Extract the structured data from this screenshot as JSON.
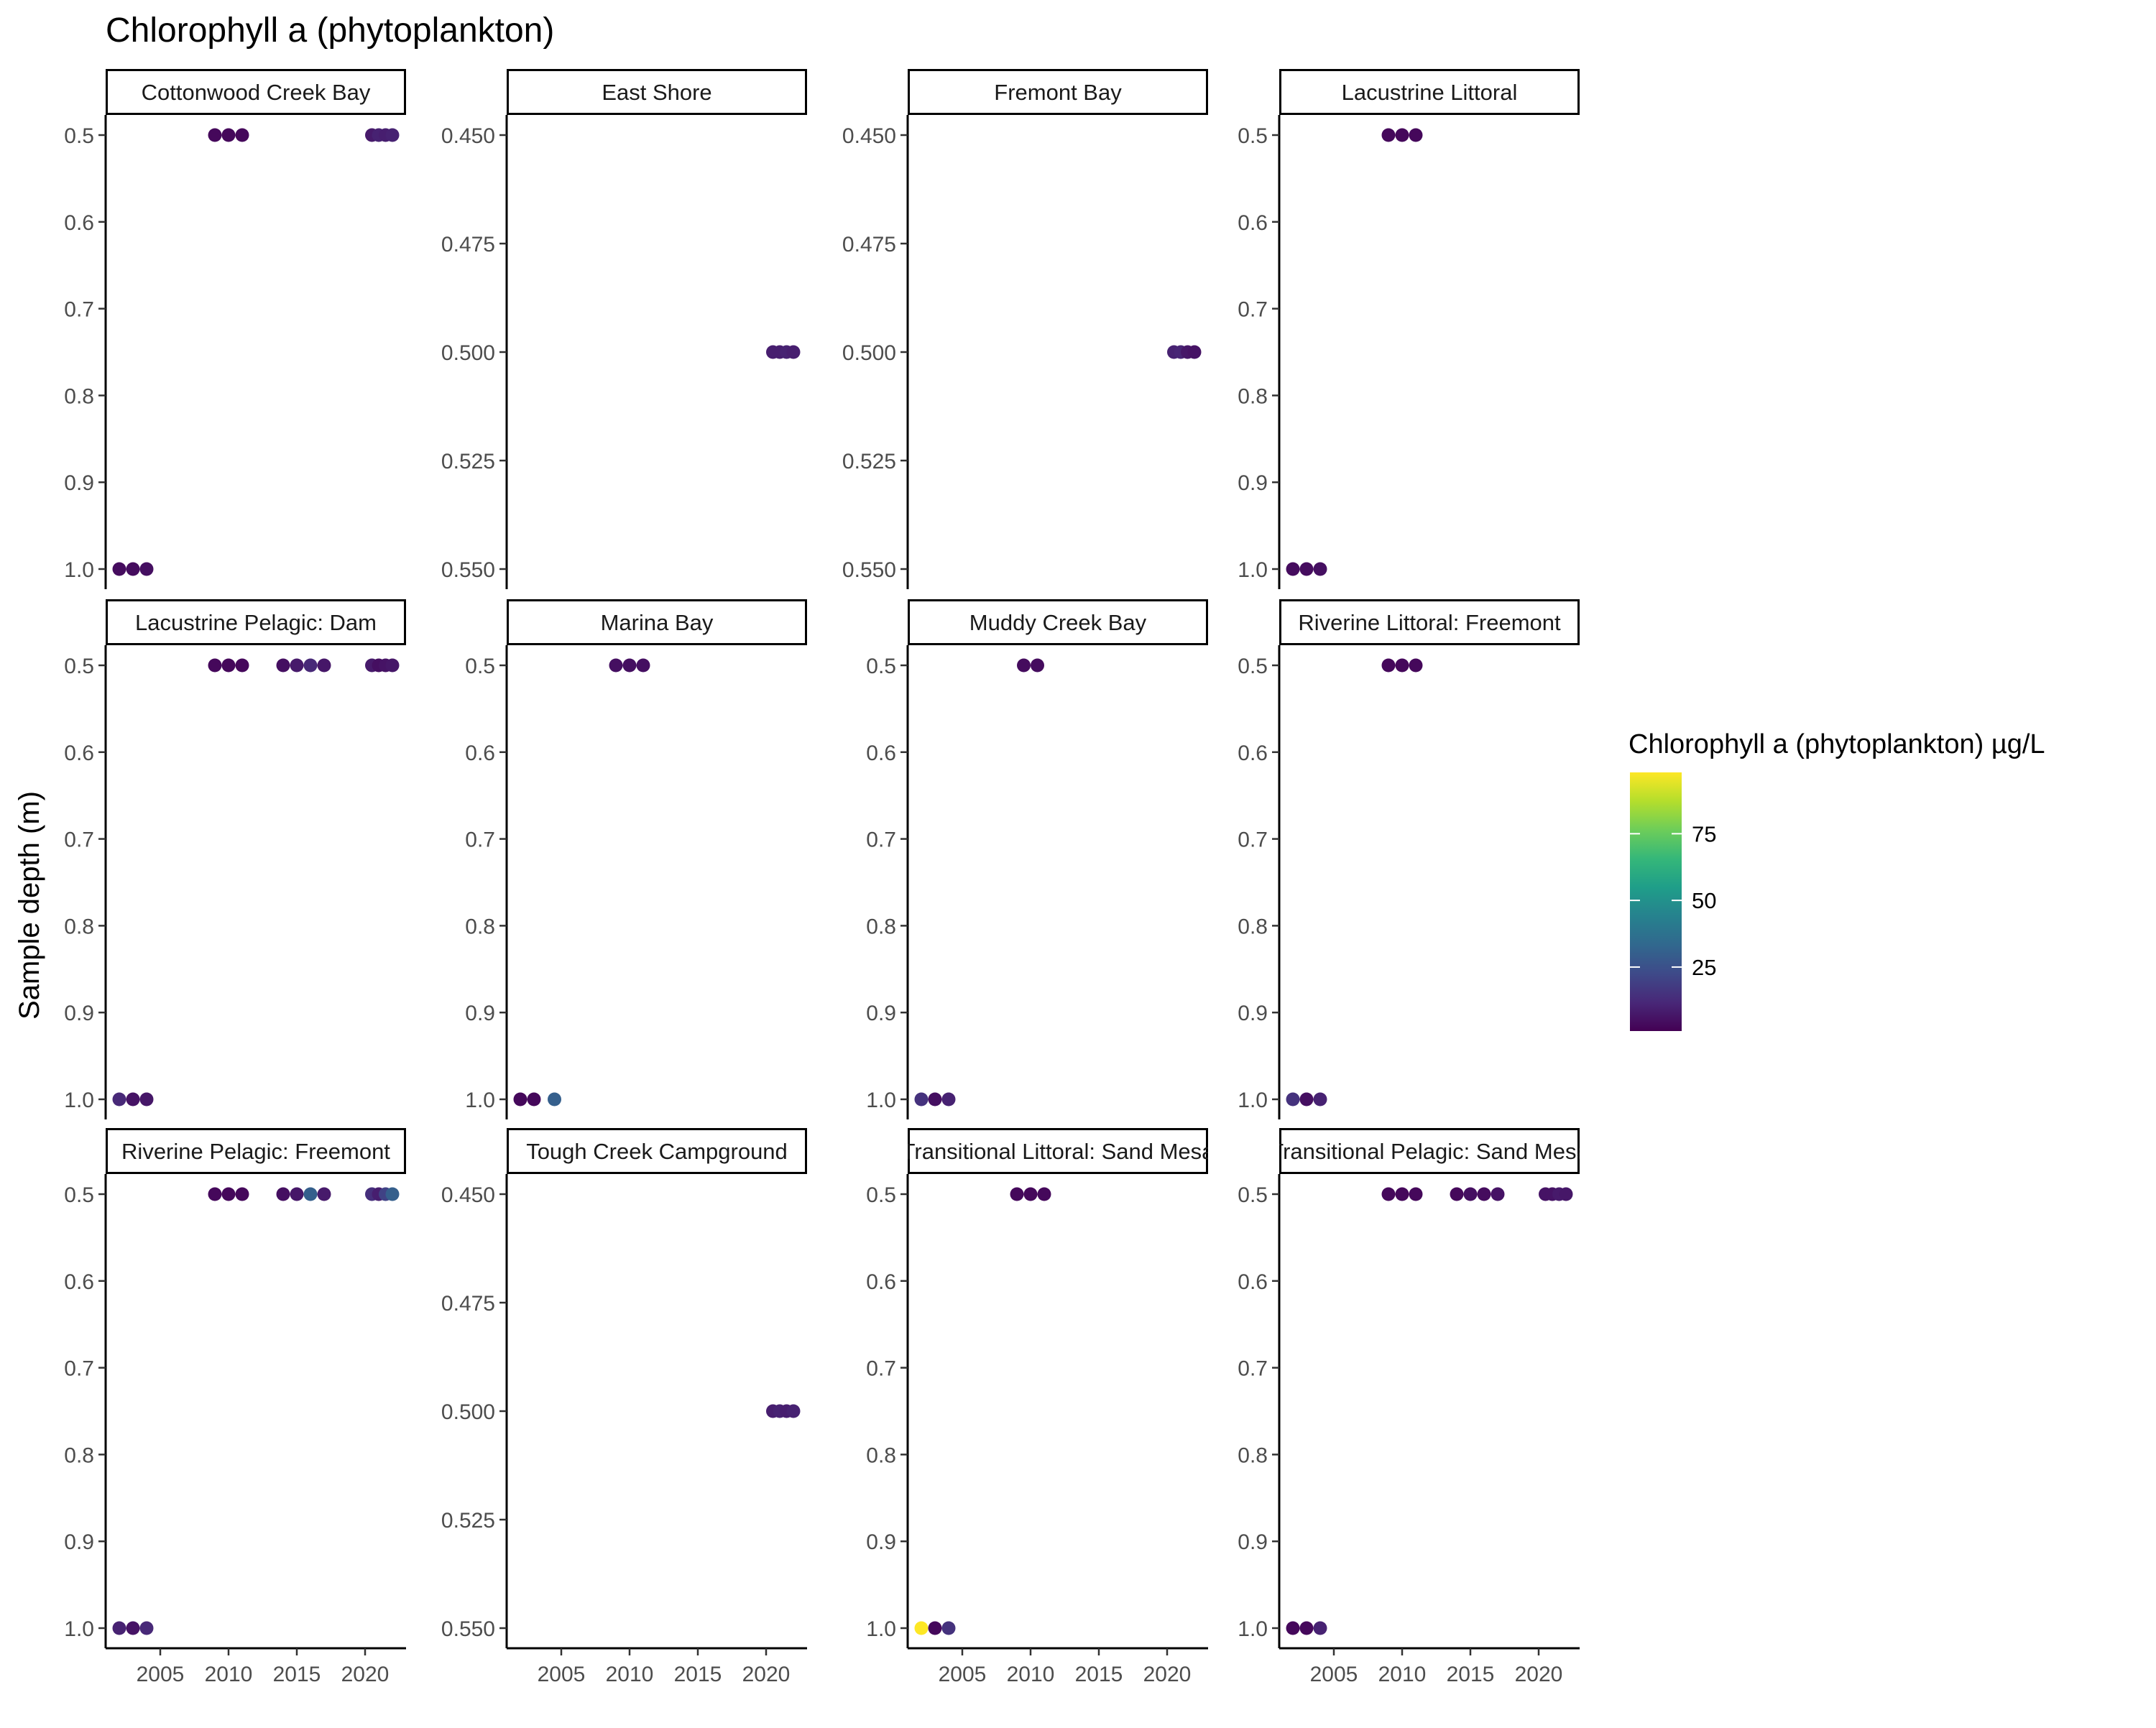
{
  "chart_data": {
    "type": "scatter",
    "title": "Chlorophyll a (phytoplankton)",
    "ylabel": "Sample depth (m)",
    "xlabel": "",
    "y_reversed": true,
    "grid": false,
    "legend_position": "right",
    "x_ticks": [
      2005,
      2010,
      2015,
      2020
    ],
    "x_range": [
      2001,
      2023
    ],
    "color_scale": {
      "title": "Chlorophyll a (phytoplankton) µg/L",
      "palette": "viridis",
      "ticks": [
        25,
        50,
        75
      ],
      "min": 1,
      "max": 98,
      "stops": [
        "#440154",
        "#482878",
        "#3E4A89",
        "#31688E",
        "#26828E",
        "#1F9E89",
        "#35B779",
        "#6DCD59",
        "#B4DE2C",
        "#FDE725"
      ]
    },
    "panels": [
      {
        "label": "Cottonwood Creek Bay",
        "y_range": [
          0.5,
          1.0
        ],
        "y_ticks": [
          "0.5",
          "0.6",
          "0.7",
          "0.8",
          "0.9",
          "1.0"
        ],
        "x_ticks_shown": false,
        "points": [
          {
            "x": 2002,
            "y": 1.0,
            "value": 4
          },
          {
            "x": 2003,
            "y": 1.0,
            "value": 4
          },
          {
            "x": 2004,
            "y": 1.0,
            "value": 5
          },
          {
            "x": 2009,
            "y": 0.5,
            "value": 3
          },
          {
            "x": 2010,
            "y": 0.5,
            "value": 3
          },
          {
            "x": 2011,
            "y": 0.5,
            "value": 3
          },
          {
            "x": 2020.5,
            "y": 0.5,
            "value": 8
          },
          {
            "x": 2021,
            "y": 0.5,
            "value": 10
          },
          {
            "x": 2021.5,
            "y": 0.5,
            "value": 9
          },
          {
            "x": 2022,
            "y": 0.5,
            "value": 10
          }
        ]
      },
      {
        "label": "East Shore",
        "y_range": [
          0.45,
          0.55
        ],
        "y_ticks": [
          "0.450",
          "0.475",
          "0.500",
          "0.525",
          "0.550"
        ],
        "x_ticks_shown": false,
        "points": [
          {
            "x": 2020.5,
            "y": 0.5,
            "value": 9
          },
          {
            "x": 2021,
            "y": 0.5,
            "value": 9
          },
          {
            "x": 2021.5,
            "y": 0.5,
            "value": 10
          },
          {
            "x": 2022,
            "y": 0.5,
            "value": 9
          }
        ]
      },
      {
        "label": "Fremont Bay",
        "y_range": [
          0.45,
          0.55
        ],
        "y_ticks": [
          "0.450",
          "0.475",
          "0.500",
          "0.525",
          "0.550"
        ],
        "x_ticks_shown": false,
        "points": [
          {
            "x": 2020.5,
            "y": 0.5,
            "value": 10
          },
          {
            "x": 2021,
            "y": 0.5,
            "value": 11
          },
          {
            "x": 2021.5,
            "y": 0.5,
            "value": 7
          },
          {
            "x": 2022,
            "y": 0.5,
            "value": 6
          }
        ]
      },
      {
        "label": "Lacustrine Littoral",
        "y_range": [
          0.5,
          1.0
        ],
        "y_ticks": [
          "0.5",
          "0.6",
          "0.7",
          "0.8",
          "0.9",
          "1.0"
        ],
        "x_ticks_shown": false,
        "points": [
          {
            "x": 2002,
            "y": 1.0,
            "value": 4
          },
          {
            "x": 2003,
            "y": 1.0,
            "value": 4
          },
          {
            "x": 2004,
            "y": 1.0,
            "value": 5
          },
          {
            "x": 2009,
            "y": 0.5,
            "value": 3
          },
          {
            "x": 2010,
            "y": 0.5,
            "value": 3
          },
          {
            "x": 2011,
            "y": 0.5,
            "value": 3
          }
        ]
      },
      {
        "label": "Lacustrine Pelagic: Dam",
        "y_range": [
          0.5,
          1.0
        ],
        "y_ticks": [
          "0.5",
          "0.6",
          "0.7",
          "0.8",
          "0.9",
          "1.0"
        ],
        "x_ticks_shown": false,
        "points": [
          {
            "x": 2002,
            "y": 1.0,
            "value": 12
          },
          {
            "x": 2003,
            "y": 1.0,
            "value": 6
          },
          {
            "x": 2004,
            "y": 1.0,
            "value": 7
          },
          {
            "x": 2009,
            "y": 0.5,
            "value": 3
          },
          {
            "x": 2010,
            "y": 0.5,
            "value": 3
          },
          {
            "x": 2011,
            "y": 0.5,
            "value": 3
          },
          {
            "x": 2014,
            "y": 0.5,
            "value": 5
          },
          {
            "x": 2015,
            "y": 0.5,
            "value": 8
          },
          {
            "x": 2016,
            "y": 0.5,
            "value": 12
          },
          {
            "x": 2017,
            "y": 0.5,
            "value": 7
          },
          {
            "x": 2020.5,
            "y": 0.5,
            "value": 8
          },
          {
            "x": 2021,
            "y": 0.5,
            "value": 5
          },
          {
            "x": 2021.5,
            "y": 0.5,
            "value": 6
          },
          {
            "x": 2022,
            "y": 0.5,
            "value": 7
          }
        ]
      },
      {
        "label": "Marina Bay",
        "y_range": [
          0.5,
          1.0
        ],
        "y_ticks": [
          "0.5",
          "0.6",
          "0.7",
          "0.8",
          "0.9",
          "1.0"
        ],
        "x_ticks_shown": false,
        "points": [
          {
            "x": 2002,
            "y": 1.0,
            "value": 3
          },
          {
            "x": 2003,
            "y": 1.0,
            "value": 3
          },
          {
            "x": 2004.5,
            "y": 1.0,
            "value": 30
          },
          {
            "x": 2009,
            "y": 0.5,
            "value": 5
          },
          {
            "x": 2010,
            "y": 0.5,
            "value": 5
          },
          {
            "x": 2011,
            "y": 0.5,
            "value": 5
          }
        ]
      },
      {
        "label": "Muddy Creek Bay",
        "y_range": [
          0.5,
          1.0
        ],
        "y_ticks": [
          "0.5",
          "0.6",
          "0.7",
          "0.8",
          "0.9",
          "1.0"
        ],
        "x_ticks_shown": false,
        "points": [
          {
            "x": 2002,
            "y": 1.0,
            "value": 15
          },
          {
            "x": 2003,
            "y": 1.0,
            "value": 5
          },
          {
            "x": 2004,
            "y": 1.0,
            "value": 10
          },
          {
            "x": 2009.5,
            "y": 0.5,
            "value": 4
          },
          {
            "x": 2010.5,
            "y": 0.5,
            "value": 4
          }
        ]
      },
      {
        "label": "Riverine Littoral: Freemont",
        "y_range": [
          0.5,
          1.0
        ],
        "y_ticks": [
          "0.5",
          "0.6",
          "0.7",
          "0.8",
          "0.9",
          "1.0"
        ],
        "x_ticks_shown": false,
        "points": [
          {
            "x": 2002,
            "y": 1.0,
            "value": 15
          },
          {
            "x": 2003,
            "y": 1.0,
            "value": 5
          },
          {
            "x": 2004,
            "y": 1.0,
            "value": 10
          },
          {
            "x": 2009,
            "y": 0.5,
            "value": 3
          },
          {
            "x": 2010,
            "y": 0.5,
            "value": 3
          },
          {
            "x": 2011,
            "y": 0.5,
            "value": 3
          }
        ]
      },
      {
        "label": "Riverine Pelagic: Freemont",
        "y_range": [
          0.5,
          1.0
        ],
        "y_ticks": [
          "0.5",
          "0.6",
          "0.7",
          "0.8",
          "0.9",
          "1.0"
        ],
        "x_ticks_shown": true,
        "points": [
          {
            "x": 2002,
            "y": 1.0,
            "value": 10
          },
          {
            "x": 2003,
            "y": 1.0,
            "value": 6
          },
          {
            "x": 2004,
            "y": 1.0,
            "value": 12
          },
          {
            "x": 2009,
            "y": 0.5,
            "value": 3
          },
          {
            "x": 2010,
            "y": 0.5,
            "value": 3
          },
          {
            "x": 2011,
            "y": 0.5,
            "value": 3
          },
          {
            "x": 2014,
            "y": 0.5,
            "value": 5
          },
          {
            "x": 2015,
            "y": 0.5,
            "value": 7
          },
          {
            "x": 2016,
            "y": 0.5,
            "value": 30
          },
          {
            "x": 2017,
            "y": 0.5,
            "value": 8
          },
          {
            "x": 2020.5,
            "y": 0.5,
            "value": 14
          },
          {
            "x": 2021,
            "y": 0.5,
            "value": 9
          },
          {
            "x": 2021.5,
            "y": 0.5,
            "value": 20
          },
          {
            "x": 2022,
            "y": 0.5,
            "value": 30
          }
        ]
      },
      {
        "label": "Tough Creek Campground",
        "y_range": [
          0.45,
          0.55
        ],
        "y_ticks": [
          "0.450",
          "0.475",
          "0.500",
          "0.525",
          "0.550"
        ],
        "x_ticks_shown": true,
        "points": [
          {
            "x": 2020.5,
            "y": 0.5,
            "value": 9
          },
          {
            "x": 2021,
            "y": 0.5,
            "value": 10
          },
          {
            "x": 2021.5,
            "y": 0.5,
            "value": 9
          },
          {
            "x": 2022,
            "y": 0.5,
            "value": 10
          }
        ]
      },
      {
        "label": "Transitional Littoral: Sand Mesa",
        "y_range": [
          0.5,
          1.0
        ],
        "y_ticks": [
          "0.5",
          "0.6",
          "0.7",
          "0.8",
          "0.9",
          "1.0"
        ],
        "x_ticks_shown": true,
        "points": [
          {
            "x": 2002,
            "y": 1.0,
            "value": 98
          },
          {
            "x": 2003,
            "y": 1.0,
            "value": 3
          },
          {
            "x": 2004,
            "y": 1.0,
            "value": 15
          },
          {
            "x": 2009,
            "y": 0.5,
            "value": 3
          },
          {
            "x": 2010,
            "y": 0.5,
            "value": 3
          },
          {
            "x": 2011,
            "y": 0.5,
            "value": 3
          }
        ]
      },
      {
        "label": "Transitional Pelagic: Sand Mesa",
        "y_range": [
          0.5,
          1.0
        ],
        "y_ticks": [
          "0.5",
          "0.6",
          "0.7",
          "0.8",
          "0.9",
          "1.0"
        ],
        "x_ticks_shown": true,
        "points": [
          {
            "x": 2002,
            "y": 1.0,
            "value": 3
          },
          {
            "x": 2003,
            "y": 1.0,
            "value": 3
          },
          {
            "x": 2004,
            "y": 1.0,
            "value": 10
          },
          {
            "x": 2009,
            "y": 0.5,
            "value": 3
          },
          {
            "x": 2010,
            "y": 0.5,
            "value": 3
          },
          {
            "x": 2011,
            "y": 0.5,
            "value": 3
          },
          {
            "x": 2014,
            "y": 0.5,
            "value": 3
          },
          {
            "x": 2015,
            "y": 0.5,
            "value": 5
          },
          {
            "x": 2016,
            "y": 0.5,
            "value": 4
          },
          {
            "x": 2017,
            "y": 0.5,
            "value": 6
          },
          {
            "x": 2020.5,
            "y": 0.5,
            "value": 6
          },
          {
            "x": 2021,
            "y": 0.5,
            "value": 6
          },
          {
            "x": 2021.5,
            "y": 0.5,
            "value": 8
          },
          {
            "x": 2022,
            "y": 0.5,
            "value": 7
          }
        ]
      }
    ]
  }
}
